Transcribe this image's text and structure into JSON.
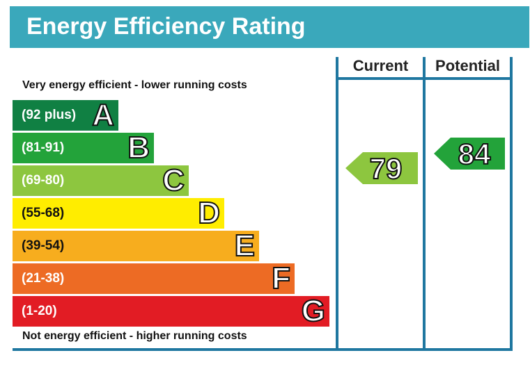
{
  "title": "Energy Efficiency Rating",
  "columns": {
    "current": "Current",
    "potential": "Potential"
  },
  "top_caption": "Very energy efficient - lower running costs",
  "bottom_caption": "Not energy efficient - higher running costs",
  "colors": {
    "title_bar": "#3aa8bb",
    "divider": "#1f77a0"
  },
  "chart_data": {
    "type": "bar",
    "title": "Energy Efficiency Rating",
    "bands": [
      {
        "letter": "A",
        "range": "(92 plus)",
        "color": "#108043"
      },
      {
        "letter": "B",
        "range": "(81-91)",
        "color": "#23a33a"
      },
      {
        "letter": "C",
        "range": "(69-80)",
        "color": "#8dc63f"
      },
      {
        "letter": "D",
        "range": "(55-68)",
        "color": "#ffed00"
      },
      {
        "letter": "E",
        "range": "(39-54)",
        "color": "#f7ad1e"
      },
      {
        "letter": "F",
        "range": "(21-38)",
        "color": "#ed6b24"
      },
      {
        "letter": "G",
        "range": "(1-20)",
        "color": "#e21c24"
      }
    ],
    "current": {
      "value": 79,
      "band": "C",
      "color": "#8dc63f"
    },
    "potential": {
      "value": 84,
      "band": "B",
      "color": "#23a33a"
    }
  }
}
